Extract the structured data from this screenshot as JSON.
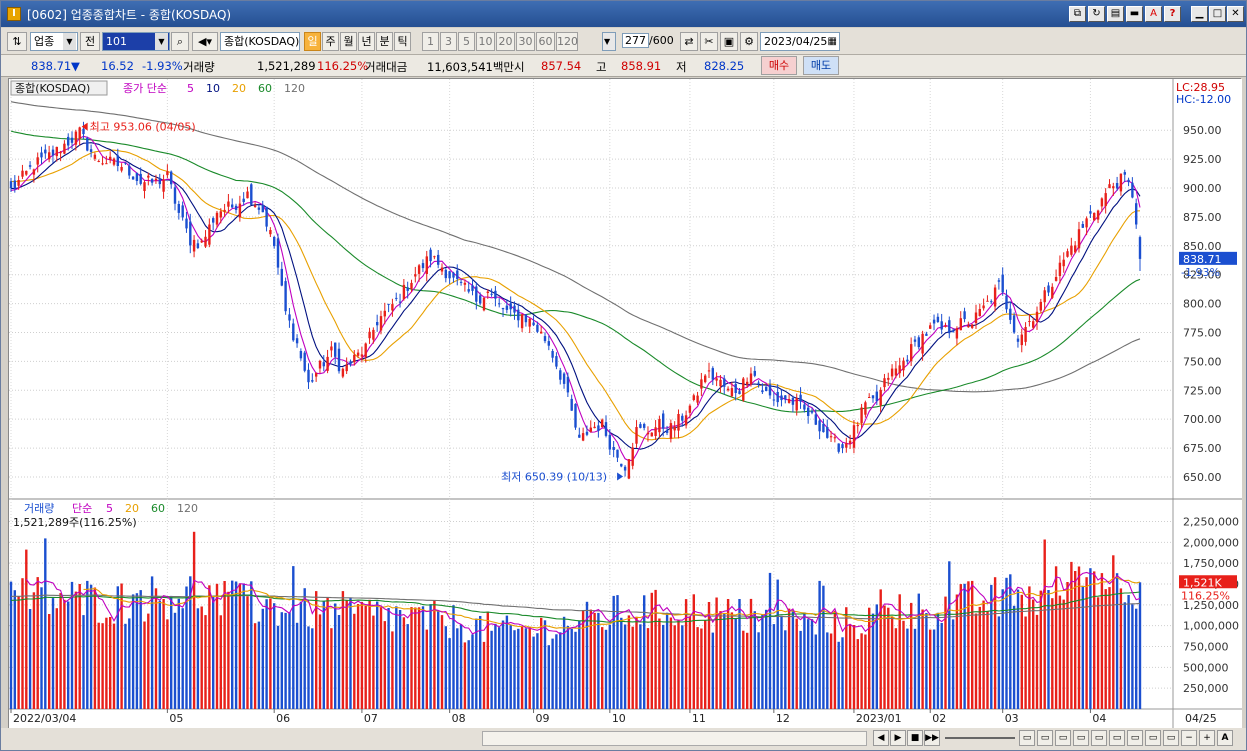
{
  "window": {
    "title": "[0602] 업종종합차트 - 종합(KOSDAQ)"
  },
  "toolbar1": {
    "market_select": "업종",
    "prev_label": "전",
    "code": "101",
    "name": "종합(KOSDAQ)",
    "periods": [
      "일",
      "주",
      "월",
      "년",
      "분",
      "틱"
    ],
    "active_period": "일",
    "intervals": [
      "1",
      "3",
      "5",
      "10",
      "20",
      "30",
      "60",
      "120"
    ],
    "count": "277",
    "total": "/600",
    "date": "2023/04/25"
  },
  "quote": {
    "price": "838.71",
    "change": "16.52",
    "change_pct": "-1.93%",
    "volume_label": "거래량",
    "volume": "1,521,289",
    "volume_pct": "116.25%",
    "amount_label": "거래대금",
    "amount": "11,603,541백만",
    "open_label": "시",
    "open": "857.54",
    "high_label": "고",
    "high": "858.91",
    "low_label": "저",
    "low": "828.25",
    "buy_label": "매수",
    "sell_label": "매도"
  },
  "colors": {
    "up": "#e8201a",
    "down": "#1b4fd0",
    "ma5": "#c000c0",
    "ma10": "#001080",
    "ma20": "#e8a000",
    "ma60": "#1a8a2a",
    "ma120": "#707070",
    "title_bar": "#2f5ea6"
  },
  "chart_data": [
    {
      "type": "candlestick",
      "title": "종합(KOSDAQ)",
      "legend": [
        "종가 단순",
        "5",
        "10",
        "20",
        "60",
        "120"
      ],
      "ylim": [
        637,
        977
      ],
      "yticks": [
        650,
        675,
        700,
        725,
        750,
        775,
        800,
        825,
        850,
        875,
        900,
        925,
        950
      ],
      "x_month_labels": [
        {
          "label": "2022/03/04",
          "index": 0
        },
        {
          "label": "05",
          "index": 41
        },
        {
          "label": "06",
          "index": 69
        },
        {
          "label": "07",
          "index": 92
        },
        {
          "label": "08",
          "index": 115
        },
        {
          "label": "09",
          "index": 137
        },
        {
          "label": "10",
          "index": 157
        },
        {
          "label": "11",
          "index": 178
        },
        {
          "label": "12",
          "index": 200
        },
        {
          "label": "2023/01",
          "index": 221
        },
        {
          "label": "02",
          "index": 241
        },
        {
          "label": "03",
          "index": 260
        },
        {
          "label": "04",
          "index": 283
        }
      ],
      "last_date_label": "04/25",
      "annotations": {
        "high": {
          "text": "최고 953.06 (04/05)",
          "value": 953.06,
          "index": 18
        },
        "low": {
          "text": "최저 650.39 (10/13)",
          "value": 650.39,
          "index": 161
        }
      },
      "right_badges": {
        "lc": "LC:28.95",
        "hc": "HC:-12.00"
      },
      "last_price_badge": "838.71",
      "last_pct_badge": "-1.93%",
      "anchors": [
        [
          0,
          898
        ],
        [
          6,
          920
        ],
        [
          12,
          932
        ],
        [
          18,
          948
        ],
        [
          22,
          926
        ],
        [
          26,
          922
        ],
        [
          30,
          918
        ],
        [
          34,
          905
        ],
        [
          38,
          905
        ],
        [
          41,
          910
        ],
        [
          44,
          878
        ],
        [
          47,
          855
        ],
        [
          50,
          852
        ],
        [
          54,
          880
        ],
        [
          58,
          884
        ],
        [
          62,
          895
        ],
        [
          66,
          880
        ],
        [
          69,
          850
        ],
        [
          72,
          792
        ],
        [
          75,
          765
        ],
        [
          78,
          730
        ],
        [
          81,
          745
        ],
        [
          84,
          758
        ],
        [
          87,
          742
        ],
        [
          90,
          752
        ],
        [
          93,
          762
        ],
        [
          96,
          785
        ],
        [
          99,
          795
        ],
        [
          102,
          806
        ],
        [
          106,
          826
        ],
        [
          110,
          840
        ],
        [
          113,
          832
        ],
        [
          116,
          820
        ],
        [
          119,
          812
        ],
        [
          122,
          804
        ],
        [
          125,
          810
        ],
        [
          128,
          798
        ],
        [
          131,
          790
        ],
        [
          134,
          790
        ],
        [
          137,
          782
        ],
        [
          141,
          765
        ],
        [
          145,
          730
        ],
        [
          149,
          680
        ],
        [
          152,
          693
        ],
        [
          155,
          695
        ],
        [
          158,
          672
        ],
        [
          161,
          660
        ],
        [
          164,
          690
        ],
        [
          167,
          690
        ],
        [
          170,
          695
        ],
        [
          173,
          692
        ],
        [
          176,
          702
        ],
        [
          179,
          715
        ],
        [
          182,
          740
        ],
        [
          185,
          735
        ],
        [
          188,
          724
        ],
        [
          191,
          726
        ],
        [
          194,
          744
        ],
        [
          197,
          725
        ],
        [
          200,
          716
        ],
        [
          203,
          718
        ],
        [
          206,
          713
        ],
        [
          209,
          704
        ],
        [
          212,
          695
        ],
        [
          215,
          680
        ],
        [
          218,
          676
        ],
        [
          221,
          690
        ],
        [
          224,
          712
        ],
        [
          227,
          716
        ],
        [
          230,
          738
        ],
        [
          233,
          745
        ],
        [
          236,
          760
        ],
        [
          239,
          772
        ],
        [
          242,
          780
        ],
        [
          245,
          776
        ],
        [
          248,
          782
        ],
        [
          252,
          784
        ],
        [
          256,
          800
        ],
        [
          259,
          815
        ],
        [
          262,
          790
        ],
        [
          264,
          770
        ],
        [
          267,
          785
        ],
        [
          270,
          800
        ],
        [
          273,
          820
        ],
        [
          276,
          838
        ],
        [
          279,
          855
        ],
        [
          282,
          872
        ],
        [
          285,
          885
        ],
        [
          288,
          900
        ],
        [
          290,
          905
        ],
        [
          292,
          908
        ],
        [
          294,
          895
        ],
        [
          295,
          872
        ],
        [
          296,
          838.71
        ]
      ]
    },
    {
      "type": "bar",
      "title": "거래량",
      "legend": [
        "거래량",
        "단순",
        "5",
        "20",
        "60",
        "120"
      ],
      "subtitle": "1,521,289주(116.25%)",
      "ylim": [
        0,
        2400
      ],
      "yticks": [
        250,
        500,
        750,
        1000,
        1250,
        1500,
        1750,
        2000,
        2250
      ],
      "ytick_labels": [
        "250,000",
        "500,000",
        "750,000",
        "1,000,000",
        "1,250,000",
        "1,500,000",
        "1,750,000",
        "2,000,000",
        "2,250,000"
      ],
      "units": "K",
      "last_badge": "1,521K",
      "last_pct_badge": "116.25%",
      "level_anchors": [
        [
          0,
          1350
        ],
        [
          30,
          1280
        ],
        [
          45,
          1400
        ],
        [
          60,
          1250
        ],
        [
          90,
          1150
        ],
        [
          115,
          1050
        ],
        [
          130,
          920
        ],
        [
          145,
          1000
        ],
        [
          160,
          1150
        ],
        [
          175,
          1200
        ],
        [
          195,
          1080
        ],
        [
          215,
          980
        ],
        [
          235,
          1150
        ],
        [
          255,
          1300
        ],
        [
          270,
          1350
        ],
        [
          285,
          1650
        ],
        [
          296,
          1521
        ]
      ]
    }
  ]
}
